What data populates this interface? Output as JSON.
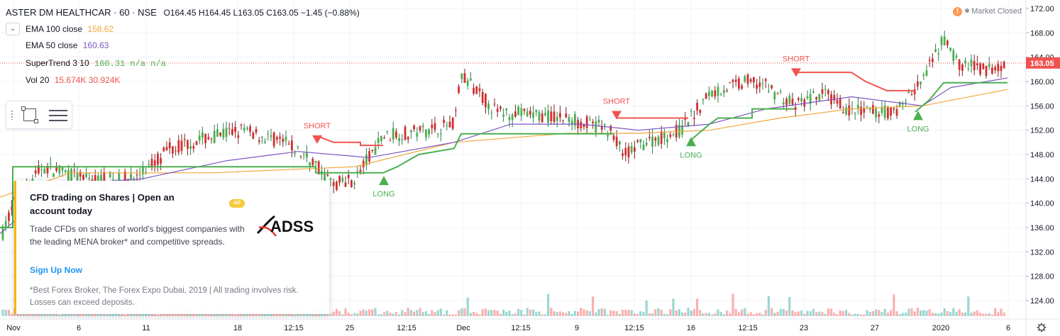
{
  "header": {
    "symbol": "ASTER DM HEALTHCAR · 60 · NSE",
    "ohlc": "O164.45  H164.45  L163.05  C163.05  −1.45 (−0.88%)",
    "indicators": [
      {
        "name": "EMA 100 close",
        "value": "158.62",
        "color": "#f2a53b"
      },
      {
        "name": "EMA 50 close",
        "value": "160.63",
        "color": "#7e57c2"
      },
      {
        "name": "SuperTrend 3 10",
        "value": "160.31  n/a  n/a",
        "color": "#4caf50"
      },
      {
        "name": "Vol 20",
        "value": "15.674K  30.924K",
        "color": "#ef5350"
      }
    ]
  },
  "status": {
    "warning_icon": "!",
    "market_text": "Market Closed"
  },
  "price_axis": {
    "ticks": [
      "172.00",
      "168.00",
      "164.00",
      "160.00",
      "156.00",
      "152.00",
      "148.00",
      "144.00",
      "140.00",
      "136.00",
      "132.00",
      "128.00",
      "124.00"
    ],
    "current_price": "163.05",
    "current_price_color": "#ef5350"
  },
  "time_axis": {
    "ticks": [
      "Nov",
      "6",
      "11",
      "18",
      "12:15",
      "25",
      "12:15",
      "Dec",
      "12:15",
      "9",
      "12:15",
      "16",
      "12:15",
      "23",
      "27",
      "2020",
      "6"
    ],
    "settings_icon": "gear-icon"
  },
  "signals": [
    {
      "label": "SHORT",
      "color": "#ef5350"
    },
    {
      "label": "LONG",
      "color": "#4caf50"
    },
    {
      "label": "SHORT",
      "color": "#ef5350"
    },
    {
      "label": "LONG",
      "color": "#4caf50"
    },
    {
      "label": "SHORT",
      "color": "#ef5350"
    },
    {
      "label": "LONG",
      "color": "#4caf50"
    }
  ],
  "ad": {
    "title": "CFD trading on Shares | Open an account today",
    "badge": "AD",
    "body": "Trade CFDs on shares of world's biggest companies with the leading MENA broker* and competitive spreads.",
    "link": "Sign Up Now",
    "footnote": "*Best Forex Broker, The Forex Expo Dubai, 2019 | All trading involves risk. Losses can exceed deposits.",
    "logo_text": "ADSS"
  },
  "colors": {
    "up": "#26a69a",
    "down": "#ef5350",
    "supertrend_up": "#4caf50",
    "supertrend_down": "#ef5350",
    "ema50": "#7e57c2",
    "ema100": "#f2a53b"
  }
}
